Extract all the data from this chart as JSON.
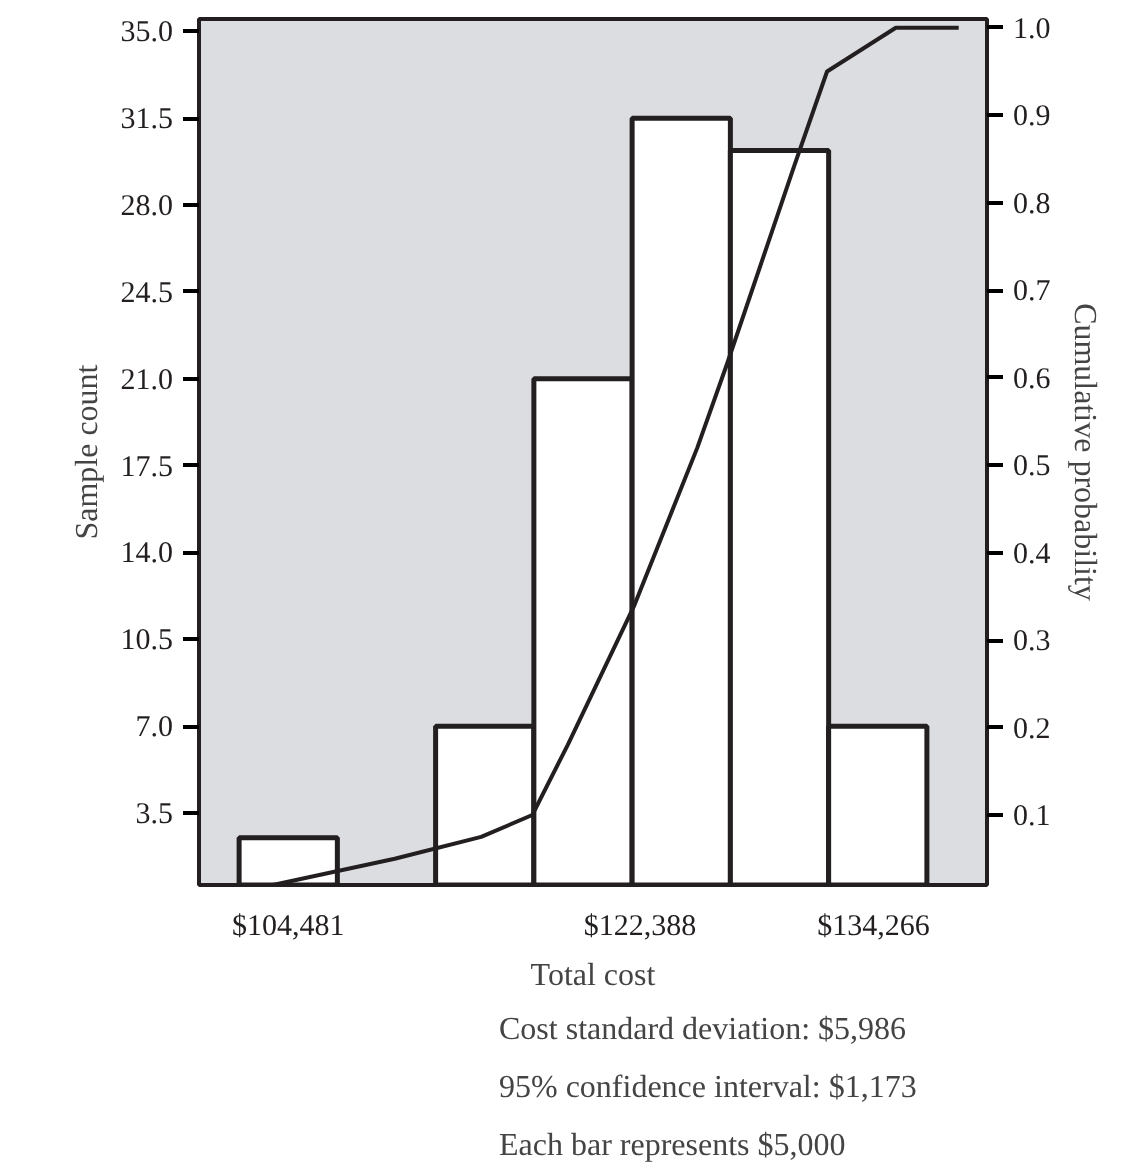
{
  "chart_data": {
    "type": "histogram",
    "xlabel": "Total cost",
    "ylabel": "Sample count",
    "y2label": "Cumulative probability",
    "bins": [
      101981,
      106981,
      111981,
      116981,
      121981,
      126981,
      131981,
      136981
    ],
    "values": [
      2.5,
      null,
      7.0,
      21.0,
      31.5,
      30.2,
      7.0
    ],
    "color": "#ffffff",
    "series": [
      {
        "type": "line",
        "axis": "y2",
        "color": "#231f20",
        "x": [
          103700,
          109900,
          114300,
          116900,
          118700,
          122100,
          125300,
          126800,
          130200,
          131900,
          135400,
          138600
        ],
        "values": [
          0.02,
          0.05,
          0.075,
          0.1,
          0.18,
          0.34,
          0.52,
          0.615,
          0.84,
          0.95,
          1.0,
          1.0
        ]
      }
    ],
    "xlim": [
      99940,
      140040
    ],
    "xticks": [
      {
        "value": 104481,
        "label": "$104,481"
      },
      {
        "value": 122388,
        "label": "$122,388"
      },
      {
        "value": 134266,
        "label": "$134,266"
      }
    ],
    "ylim": [
      0.6,
      35.5
    ],
    "yticks": [
      3.5,
      {
        "value": 7,
        "label": "7.0"
      },
      10.5,
      {
        "value": 14,
        "label": "14.0"
      },
      17.5,
      {
        "value": 21,
        "label": "21.0"
      },
      24.5,
      {
        "value": 28,
        "label": "28.0"
      },
      31.5,
      {
        "value": 35,
        "label": "35.0"
      }
    ],
    "y2lim": [
      0.02,
      1.01
    ],
    "y2ticks": [
      0.1,
      0.2,
      0.3,
      0.4,
      0.5,
      0.6,
      0.7,
      0.8,
      0.9,
      {
        "value": 1,
        "label": "1.0"
      }
    ],
    "grid": false,
    "annotations": [
      "Cost standard deviation:  $5,986",
      "95% confidence interval:  $1,173",
      "Each bar represents $5,000"
    ]
  }
}
